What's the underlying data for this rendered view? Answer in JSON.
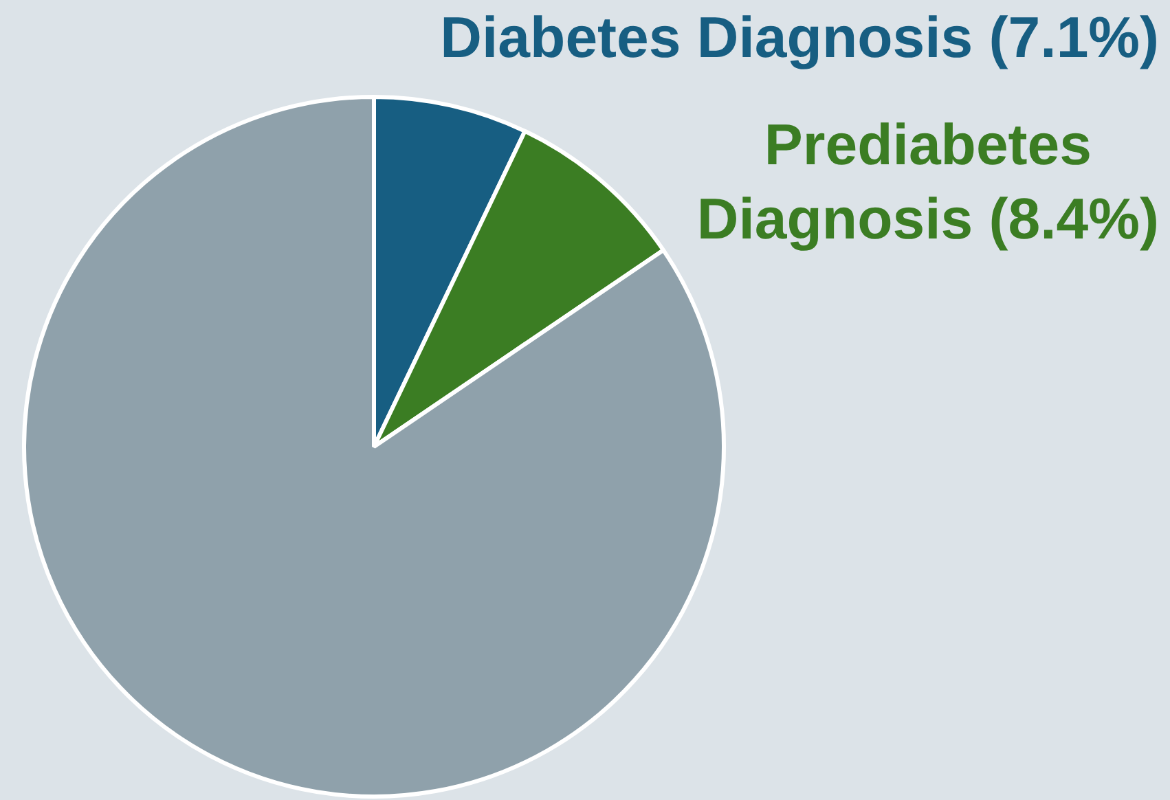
{
  "chart_data": {
    "type": "pie",
    "categories": [
      "Diabetes Diagnosis (7.1%)",
      "Prediabetes Diagnosis (8.4%)",
      null
    ],
    "values": [
      7.1,
      8.4,
      84.5
    ],
    "colors": [
      "#175e82",
      "#3b7d23",
      "#8fa1ab"
    ],
    "legend": false
  }
}
